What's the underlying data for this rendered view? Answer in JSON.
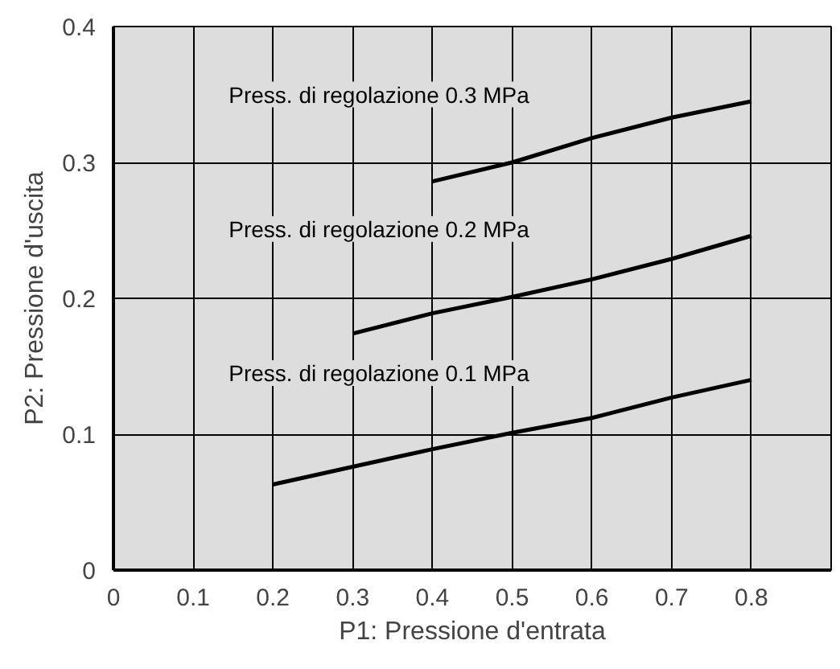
{
  "chart_data": {
    "type": "line",
    "xlabel": "P1: Pressione d'entrata",
    "ylabel": "P2: Pressione d'uscita",
    "series": [
      {
        "name": "Press. di regolazione 0.3 MPa",
        "x": [
          0.4,
          0.5,
          0.6,
          0.7,
          0.8
        ],
        "values": [
          0.286,
          0.3,
          0.318,
          0.333,
          0.345
        ],
        "color": "#000000"
      },
      {
        "name": "Press. di regolazione 0.2 MPa",
        "x": [
          0.3,
          0.4,
          0.5,
          0.6,
          0.7,
          0.8
        ],
        "values": [
          0.174,
          0.189,
          0.201,
          0.214,
          0.229,
          0.246
        ],
        "color": "#000000"
      },
      {
        "name": "Press. di regolazione 0.1 MPa",
        "x": [
          0.2,
          0.3,
          0.4,
          0.5,
          0.6,
          0.7,
          0.8
        ],
        "values": [
          0.063,
          0.076,
          0.089,
          0.101,
          0.112,
          0.127,
          0.14
        ],
        "color": "#000000"
      }
    ],
    "xlim": [
      0,
      0.9
    ],
    "ylim": [
      0,
      0.4
    ],
    "xticks": [
      0,
      0.1,
      0.2,
      0.3,
      0.4,
      0.5,
      0.6,
      0.7,
      0.8
    ],
    "yticks": [
      0,
      0.1,
      0.2,
      0.3,
      0.4
    ],
    "grid": true,
    "marker": "none",
    "line_style": "solid"
  }
}
